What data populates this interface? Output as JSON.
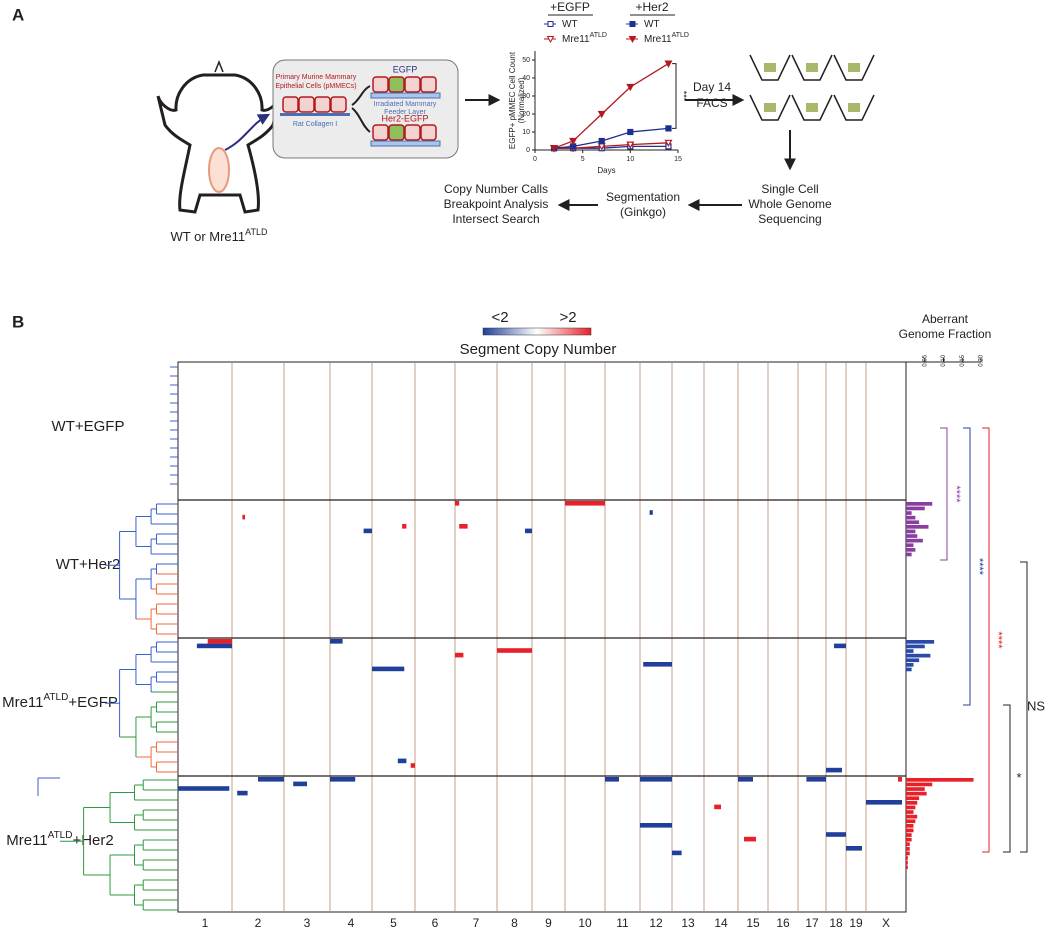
{
  "panel_a": {
    "label": "A",
    "mouse_label": {
      "text": "WT or Mre11",
      "sup": "ATLD"
    },
    "culture": {
      "cells_label": [
        "Primary Murine Mammary",
        "Epithelial Cells (pMMECs)"
      ],
      "collagen": "Rat Collagen I",
      "egfp": "EGFP",
      "feeder": [
        "Irradiated Mammary",
        "Feeder Layer"
      ],
      "her2": "Her2-EGFP"
    },
    "chart": {
      "type": "line",
      "xlabel": "Days",
      "ylabel": [
        "EGFP+ pMMEC Cell Count",
        "(Normalized)"
      ],
      "x": [
        2,
        4,
        7,
        10,
        14
      ],
      "xlim": [
        0,
        15
      ],
      "xticks": [
        0,
        5,
        10,
        15
      ],
      "ylim": [
        0,
        55
      ],
      "yticks": [
        0,
        10,
        20,
        30,
        40,
        50
      ],
      "significance": "***",
      "series_groups": [
        {
          "title": "+EGFP",
          "series": [
            {
              "name": "WT",
              "color": "#1f2f8f",
              "marker": "square",
              "filled": false,
              "values": [
                1,
                1,
                1,
                2,
                2
              ]
            },
            {
              "name": "Mre11",
              "sup": "ATLD",
              "color": "#b3181f",
              "marker": "triangle",
              "filled": false,
              "values": [
                1,
                1,
                2,
                3,
                4
              ]
            }
          ]
        },
        {
          "title": "+Her2",
          "series": [
            {
              "name": "WT",
              "color": "#1f2f8f",
              "marker": "square",
              "filled": true,
              "values": [
                1,
                2,
                5,
                10,
                12
              ]
            },
            {
              "name": "Mre11",
              "sup": "ATLD",
              "color": "#b3181f",
              "marker": "triangle",
              "filled": true,
              "values": [
                1,
                5,
                20,
                35,
                48
              ]
            }
          ]
        }
      ]
    },
    "facs": [
      "Day 14",
      "FACS"
    ],
    "sequencing": [
      "Single Cell",
      "Whole Genome",
      "Sequencing"
    ],
    "segmentation": [
      "Segmentation",
      "(Ginkgo)"
    ],
    "analysis": [
      "Copy Number Calls",
      "Breakpoint Analysis",
      "Intersect Search"
    ]
  },
  "panel_b": {
    "label": "B",
    "legend": {
      "low": "<2",
      "high": ">2",
      "title": "Segment Copy Number",
      "low_color": "#1f3f9a",
      "high_color": "#e8202a"
    },
    "fraction_title": [
      "Aberrant",
      "Genome Fraction"
    ],
    "fraction_xlim": [
      0,
      0.2
    ],
    "fraction_ticks": [
      0.05,
      {
        "value": 0.1,
        "label": "0.10"
      },
      0.15,
      {
        "value": 0.2,
        "label": "0.20"
      }
    ],
    "chromosomes": [
      "1",
      "2",
      "3",
      "4",
      "5",
      "6",
      "7",
      "8",
      "9",
      "10",
      "11",
      "12",
      "13",
      "14",
      "15",
      "16",
      "17",
      "18",
      "19",
      "X"
    ],
    "groups": [
      {
        "name": "WT+EGFP",
        "color": "#8a3fa0",
        "fractions": [],
        "segments": []
      },
      {
        "name": "WT+Her2",
        "color": "#8a3fa0",
        "fractions": [
          0.07,
          0.05,
          0.015,
          0.025,
          0.035,
          0.06,
          0.025,
          0.03,
          0.045,
          0.02,
          0.025,
          0.015
        ],
        "segments": [
          {
            "row": 0,
            "chrom": "10",
            "start": 0,
            "end": 1,
            "state": "gain"
          },
          {
            "row": 0,
            "chrom": "7",
            "start": 0,
            "end": 0.1,
            "state": "gain"
          },
          {
            "row": 6,
            "chrom": "4",
            "start": 0.8,
            "end": 1,
            "state": "loss"
          },
          {
            "row": 5,
            "chrom": "5",
            "start": 0.7,
            "end": 0.8,
            "state": "gain"
          },
          {
            "row": 5,
            "chrom": "7",
            "start": 0.1,
            "end": 0.3,
            "state": "gain"
          },
          {
            "row": 6,
            "chrom": "8",
            "start": 0.8,
            "end": 1,
            "state": "loss"
          },
          {
            "row": 2,
            "chrom": "12",
            "start": 0.3,
            "end": 0.4,
            "state": "loss"
          },
          {
            "row": 3,
            "chrom": "2",
            "start": 0.2,
            "end": 0.25,
            "state": "gain"
          }
        ]
      },
      {
        "name": "Mre11",
        "sup": "ATLD",
        "suffix": "+EGFP",
        "color": "#2b4aa8",
        "fractions": [
          0.075,
          0.05,
          0.02,
          0.065,
          0.035,
          0.02,
          0.015
        ],
        "segments": [
          {
            "row": 0,
            "chrom": "1",
            "start": 0.55,
            "end": 1,
            "state": "gain"
          },
          {
            "row": 1,
            "chrom": "1",
            "start": 0.35,
            "end": 1,
            "state": "loss"
          },
          {
            "row": 2,
            "chrom": "8",
            "start": 0,
            "end": 1,
            "state": "gain"
          },
          {
            "row": 5,
            "chrom": "12",
            "start": 0.1,
            "end": 1,
            "state": "loss"
          },
          {
            "row": 6,
            "chrom": "5",
            "start": 0,
            "end": 0.75,
            "state": "loss"
          },
          {
            "row": 1,
            "chrom": "18",
            "start": 0.4,
            "end": 1,
            "state": "loss"
          },
          {
            "row": 26,
            "chrom": "5",
            "start": 0.6,
            "end": 0.8,
            "state": "loss"
          },
          {
            "row": 27,
            "chrom": "5",
            "start": 0.9,
            "end": 1,
            "state": "gain"
          },
          {
            "row": 28,
            "chrom": "18",
            "start": 0,
            "end": 0.8,
            "state": "loss"
          },
          {
            "row": 0,
            "chrom": "4",
            "start": 0,
            "end": 0.3,
            "state": "loss"
          },
          {
            "row": 3,
            "chrom": "7",
            "start": 0,
            "end": 0.2,
            "state": "gain"
          }
        ]
      },
      {
        "name": "Mre11",
        "sup": "ATLD",
        "suffix": "+Her2",
        "color": "#e8202a",
        "fractions": [
          0.18,
          0.07,
          0.05,
          0.055,
          0.035,
          0.03,
          0.025,
          0.02,
          0.03,
          0.025,
          0.02,
          0.02,
          0.015,
          0.015,
          0.01,
          0.01,
          0.01,
          0.005,
          0.005,
          0.005
        ],
        "segments": [
          {
            "row": 0,
            "chrom": "2",
            "start": 0.5,
            "end": 1,
            "state": "loss"
          },
          {
            "row": 0,
            "chrom": "4",
            "start": 0,
            "end": 0.6,
            "state": "loss"
          },
          {
            "row": 0,
            "chrom": "11",
            "start": 0,
            "end": 0.4,
            "state": "loss"
          },
          {
            "row": 0,
            "chrom": "12",
            "start": 0,
            "end": 1,
            "state": "loss"
          },
          {
            "row": 0,
            "chrom": "15",
            "start": 0,
            "end": 0.5,
            "state": "loss"
          },
          {
            "row": 0,
            "chrom": "17",
            "start": 0.3,
            "end": 1,
            "state": "loss"
          },
          {
            "row": 0,
            "chrom": "X",
            "start": 0.8,
            "end": 0.9,
            "state": "gain"
          },
          {
            "row": 2,
            "chrom": "1",
            "start": 0,
            "end": 0.95,
            "state": "loss"
          },
          {
            "row": 10,
            "chrom": "12",
            "start": 0,
            "end": 1,
            "state": "loss"
          },
          {
            "row": 5,
            "chrom": "X",
            "start": 0,
            "end": 0.9,
            "state": "loss"
          },
          {
            "row": 6,
            "chrom": "14",
            "start": 0.3,
            "end": 0.5,
            "state": "gain"
          },
          {
            "row": 12,
            "chrom": "18",
            "start": 0,
            "end": 1,
            "state": "loss"
          },
          {
            "row": 13,
            "chrom": "15",
            "start": 0.2,
            "end": 0.6,
            "state": "gain"
          },
          {
            "row": 15,
            "chrom": "19",
            "start": 0,
            "end": 0.8,
            "state": "loss"
          },
          {
            "row": 16,
            "chrom": "13",
            "start": 0,
            "end": 0.3,
            "state": "loss"
          },
          {
            "row": 3,
            "chrom": "2",
            "start": 0.1,
            "end": 0.3,
            "state": "loss"
          },
          {
            "row": 1,
            "chrom": "3",
            "start": 0.2,
            "end": 0.5,
            "state": "loss"
          }
        ]
      }
    ],
    "comparisons": [
      {
        "label": "****",
        "color": "#8a3fa0"
      },
      {
        "label": "****",
        "color": "#2b3f9e"
      },
      {
        "label": "****",
        "color": "#e8202a"
      },
      {
        "label": "*",
        "color": "#231f20"
      },
      {
        "label": "NS",
        "color": "#231f20"
      }
    ]
  }
}
